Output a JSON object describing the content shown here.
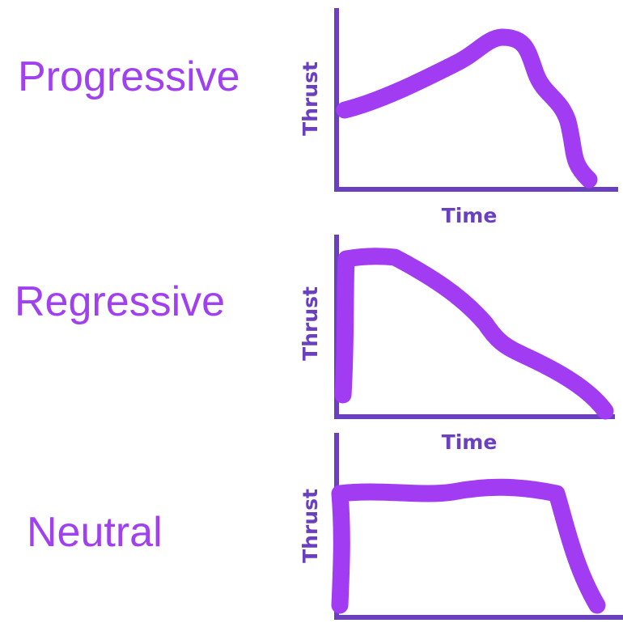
{
  "colors": {
    "label": "#a040f0",
    "axis": "#6a3fc0",
    "curve": "#a23cf2"
  },
  "panels": [
    {
      "title": "Progressive",
      "x_axis_label": "Time",
      "y_axis_label": "Thrust"
    },
    {
      "title": "Regressive",
      "x_axis_label": "Time",
      "y_axis_label": "Thrust"
    },
    {
      "title": "Neutral",
      "x_axis_label": "",
      "y_axis_label": "Thrust"
    }
  ]
}
